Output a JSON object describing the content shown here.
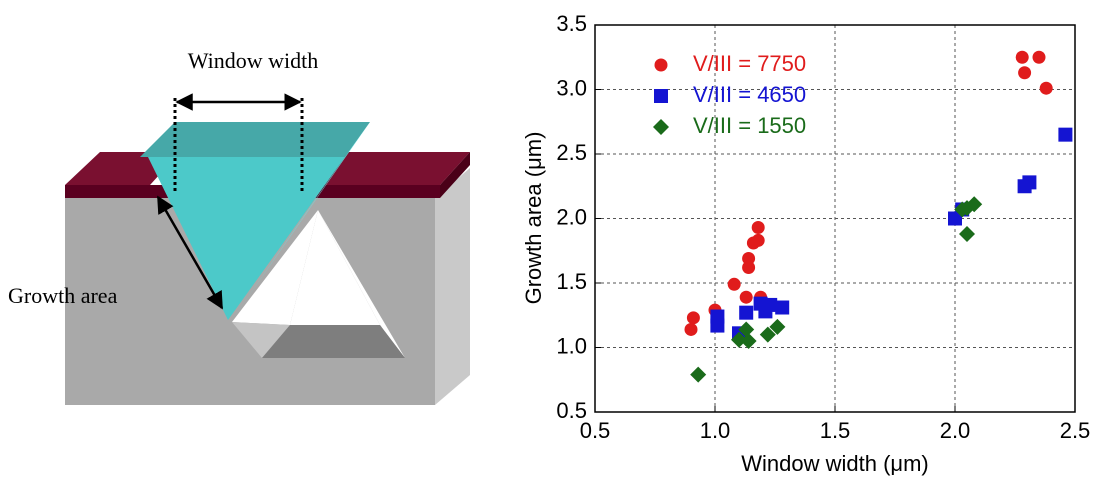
{
  "diagram": {
    "window_label": "Window width",
    "growth_label": "Growth area"
  },
  "chart_data": {
    "type": "scatter",
    "xlabel": "Window width (μm)",
    "ylabel": "Growth area (μm)",
    "xlim": [
      0.5,
      2.5
    ],
    "ylim": [
      0.5,
      3.5
    ],
    "xticks": [
      0.5,
      {
        "value": 1,
        "label": "1.0"
      },
      1.5,
      {
        "value": 2,
        "label": "2.0"
      },
      2.5
    ],
    "yticks": [
      0.5,
      {
        "value": 1,
        "label": "1.0"
      },
      1.5,
      {
        "value": 2,
        "label": "2.0"
      },
      2.5,
      {
        "value": 3,
        "label": "3.0"
      },
      3.5
    ],
    "grid": true,
    "legend": "upper left",
    "series": [
      {
        "name": "V/III = 7750",
        "color": "#e01c1c",
        "marker": "circle",
        "x": [
          0.9,
          0.91,
          1.0,
          1.08,
          1.13,
          1.19,
          1.14,
          1.14,
          1.16,
          1.18,
          1.18,
          2.28,
          2.29,
          2.35,
          2.38
        ],
        "values": [
          1.14,
          1.23,
          1.29,
          1.49,
          1.39,
          1.39,
          1.69,
          1.62,
          1.81,
          1.93,
          1.83,
          3.25,
          3.13,
          3.25,
          3.01
        ]
      },
      {
        "name": "V/III = 4650",
        "color": "#1414d2",
        "marker": "square",
        "x": [
          1.01,
          1.01,
          1.1,
          1.13,
          1.19,
          1.21,
          1.23,
          1.28,
          2.0,
          2.03,
          2.29,
          2.31,
          2.46
        ],
        "values": [
          1.24,
          1.17,
          1.11,
          1.27,
          1.34,
          1.28,
          1.33,
          1.31,
          2.0,
          2.07,
          2.25,
          2.28,
          2.65
        ]
      },
      {
        "name": "V/III = 1550",
        "color": "#1a6b1a",
        "marker": "diamond",
        "x": [
          0.93,
          1.1,
          1.13,
          1.14,
          1.22,
          1.26,
          2.03,
          2.05,
          2.05,
          2.08
        ],
        "values": [
          0.79,
          1.06,
          1.14,
          1.05,
          1.1,
          1.16,
          2.07,
          1.88,
          2.08,
          2.11
        ]
      }
    ]
  }
}
